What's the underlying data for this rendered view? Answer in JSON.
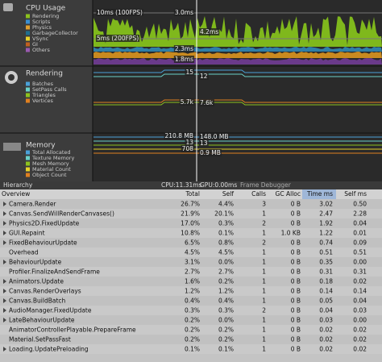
{
  "cpu_module": {
    "title": "CPU Usage",
    "legend": [
      {
        "name": "Rendering",
        "color": "#8cc21e"
      },
      {
        "name": "Scripts",
        "color": "#3a8fd2"
      },
      {
        "name": "Physics",
        "color": "#e0a030"
      },
      {
        "name": "GarbageCollector",
        "color": "#1f6f8f"
      },
      {
        "name": "VSync",
        "color": "#e6d22a"
      },
      {
        "name": "GI",
        "color": "#c06020"
      },
      {
        "name": "Others",
        "color": "#9a5ab0"
      }
    ],
    "labels": [
      "10ms (100FPS)",
      "5ms (200FPS)",
      "3.0ms",
      "4.2ms",
      "2.3ms",
      "1.8ms"
    ]
  },
  "rendering_module": {
    "title": "Rendering",
    "legend": [
      {
        "name": "Batches",
        "color": "#4aa0d8"
      },
      {
        "name": "SetPass Calls",
        "color": "#6ad0c8"
      },
      {
        "name": "Triangles",
        "color": "#8cc21e"
      },
      {
        "name": "Vertices",
        "color": "#e08020"
      }
    ],
    "labels": [
      "15",
      "12",
      "5.7k",
      "7.6k"
    ]
  },
  "memory_module": {
    "title": "Memory",
    "legend": [
      {
        "name": "Total Allocated",
        "color": "#4aa0d8"
      },
      {
        "name": "Texture Memory",
        "color": "#6ad0c8"
      },
      {
        "name": "Mesh Memory",
        "color": "#8cc21e"
      },
      {
        "name": "Material Count",
        "color": "#e6d22a"
      },
      {
        "name": "Object Count",
        "color": "#e08020"
      }
    ],
    "labels": [
      "210.8 MB",
      "148.0 MB",
      "13",
      "13",
      "708",
      "0.9 MB"
    ]
  },
  "toolbar": {
    "view": "Hierarchy",
    "cpu": "CPU:11.31ms",
    "gpu": "GPU:0.00ms",
    "frame_debugger": "Frame Debugger"
  },
  "table": {
    "columns": [
      "Overview",
      "Total",
      "Self",
      "Calls",
      "GC Alloc",
      "Time ms",
      "Self ms"
    ],
    "rows": [
      {
        "expandable": true,
        "cells": [
          "Camera.Render",
          "26.7%",
          "4.4%",
          "3",
          "0 B",
          "3.02",
          "0.50"
        ]
      },
      {
        "expandable": true,
        "cells": [
          "Canvas.SendWillRenderCanvases()",
          "21.9%",
          "20.1%",
          "1",
          "0 B",
          "2.47",
          "2.28"
        ]
      },
      {
        "expandable": true,
        "cells": [
          "Physics2D.FixedUpdate",
          "17.0%",
          "0.3%",
          "2",
          "0 B",
          "1.92",
          "0.04"
        ]
      },
      {
        "expandable": true,
        "cells": [
          "GUI.Repaint",
          "10.8%",
          "0.1%",
          "1",
          "1.0 KB",
          "1.22",
          "0.01"
        ]
      },
      {
        "expandable": true,
        "cells": [
          "FixedBehaviourUpdate",
          "6.5%",
          "0.8%",
          "2",
          "0 B",
          "0.74",
          "0.09"
        ]
      },
      {
        "expandable": false,
        "cells": [
          "Overhead",
          "4.5%",
          "4.5%",
          "1",
          "0 B",
          "0.51",
          "0.51"
        ]
      },
      {
        "expandable": true,
        "cells": [
          "BehaviourUpdate",
          "3.1%",
          "0.0%",
          "1",
          "0 B",
          "0.35",
          "0.00"
        ]
      },
      {
        "expandable": false,
        "cells": [
          "Profiler.FinalizeAndSendFrame",
          "2.7%",
          "2.7%",
          "1",
          "0 B",
          "0.31",
          "0.31"
        ]
      },
      {
        "expandable": true,
        "cells": [
          "Animators.Update",
          "1.6%",
          "0.2%",
          "1",
          "0 B",
          "0.18",
          "0.02"
        ]
      },
      {
        "expandable": true,
        "cells": [
          "Canvas.RenderOverlays",
          "1.2%",
          "1.2%",
          "1",
          "0 B",
          "0.14",
          "0.14"
        ]
      },
      {
        "expandable": true,
        "cells": [
          "Canvas.BuildBatch",
          "0.4%",
          "0.4%",
          "1",
          "0 B",
          "0.05",
          "0.04"
        ]
      },
      {
        "expandable": true,
        "cells": [
          "AudioManager.FixedUpdate",
          "0.3%",
          "0.3%",
          "2",
          "0 B",
          "0.04",
          "0.03"
        ]
      },
      {
        "expandable": true,
        "cells": [
          "LateBehaviourUpdate",
          "0.2%",
          "0.0%",
          "1",
          "0 B",
          "0.03",
          "0.00"
        ]
      },
      {
        "expandable": false,
        "cells": [
          "AnimatorControllerPlayable.PrepareFrame",
          "0.2%",
          "0.2%",
          "1",
          "0 B",
          "0.02",
          "0.02"
        ]
      },
      {
        "expandable": false,
        "cells": [
          "Material.SetPassFast",
          "0.2%",
          "0.2%",
          "1",
          "0 B",
          "0.02",
          "0.02"
        ]
      },
      {
        "expandable": true,
        "cells": [
          "Loading.UpdatePreloading",
          "0.1%",
          "0.1%",
          "1",
          "0 B",
          "0.02",
          "0.02"
        ]
      }
    ]
  }
}
